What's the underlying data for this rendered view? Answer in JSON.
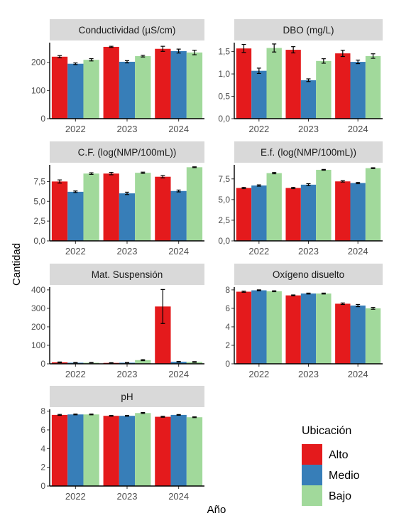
{
  "figure": {
    "ylabel": "Cantidad",
    "xlabel": "Año",
    "legend": {
      "title": "Ubicación",
      "position": "bottom-right",
      "entries": [
        {
          "label": "Alto",
          "color": "#e41a1c"
        },
        {
          "label": "Medio",
          "color": "#377eb8"
        },
        {
          "label": "Bajo",
          "color": "#a1d99b"
        }
      ]
    }
  },
  "chart_data": [
    {
      "type": "bar",
      "title": "Conductividad (µS/cm)",
      "categories": [
        "2022",
        "2023",
        "2024"
      ],
      "ylim": [
        0,
        270
      ],
      "yticks": [
        0,
        100,
        200
      ],
      "ytick_labels": [
        "0",
        "100",
        "200"
      ],
      "series": [
        {
          "name": "Alto",
          "values": [
            220,
            255,
            248
          ],
          "errors": [
            4,
            2,
            9
          ]
        },
        {
          "name": "Medio",
          "values": [
            195,
            202,
            240
          ],
          "errors": [
            3,
            4,
            7
          ]
        },
        {
          "name": "Bajo",
          "values": [
            209,
            222,
            235
          ],
          "errors": [
            4,
            3,
            8
          ]
        }
      ]
    },
    {
      "type": "bar",
      "title": "DBO (mg/L)",
      "categories": [
        "2022",
        "2023",
        "2024"
      ],
      "ylim": [
        0,
        1.7
      ],
      "yticks": [
        0,
        0.5,
        1.0,
        1.5
      ],
      "ytick_labels": [
        "0,0",
        "0,5",
        "1,0",
        "1,5"
      ],
      "series": [
        {
          "name": "Alto",
          "values": [
            1.57,
            1.54,
            1.46
          ],
          "errors": [
            0.09,
            0.07,
            0.07
          ]
        },
        {
          "name": "Medio",
          "values": [
            1.07,
            0.86,
            1.27
          ],
          "errors": [
            0.06,
            0.03,
            0.04
          ]
        },
        {
          "name": "Bajo",
          "values": [
            1.58,
            1.29,
            1.4
          ],
          "errors": [
            0.09,
            0.05,
            0.05
          ]
        }
      ]
    },
    {
      "type": "bar",
      "title": "C.F. (log(NMP/100mL))",
      "categories": [
        "2022",
        "2023",
        "2024"
      ],
      "ylim": [
        0,
        9.6
      ],
      "yticks": [
        0,
        2.5,
        5.0,
        7.5
      ],
      "ytick_labels": [
        "0,0",
        "2,5",
        "5,0",
        "7,5"
      ],
      "series": [
        {
          "name": "Alto",
          "values": [
            7.5,
            8.5,
            8.1
          ],
          "errors": [
            0.2,
            0.15,
            0.15
          ]
        },
        {
          "name": "Medio",
          "values": [
            6.2,
            6.0,
            6.3
          ],
          "errors": [
            0.1,
            0.15,
            0.12
          ]
        },
        {
          "name": "Bajo",
          "values": [
            8.5,
            8.6,
            9.3
          ],
          "errors": [
            0.1,
            0.08,
            0.05
          ]
        }
      ]
    },
    {
      "type": "bar",
      "title": "E.f. (log(NMP/100mL))",
      "categories": [
        "2022",
        "2023",
        "2024"
      ],
      "ylim": [
        0,
        9.2
      ],
      "yticks": [
        0,
        2.5,
        5.0,
        7.5
      ],
      "ytick_labels": [
        "0,0",
        "2,5",
        "5,0",
        "7,5"
      ],
      "series": [
        {
          "name": "Alto",
          "values": [
            6.4,
            6.4,
            7.2
          ],
          "errors": [
            0.08,
            0.08,
            0.08
          ]
        },
        {
          "name": "Medio",
          "values": [
            6.7,
            6.8,
            7.0
          ],
          "errors": [
            0.08,
            0.12,
            0.08
          ]
        },
        {
          "name": "Bajo",
          "values": [
            8.2,
            8.6,
            8.8
          ],
          "errors": [
            0.08,
            0.05,
            0.05
          ]
        }
      ]
    },
    {
      "type": "bar",
      "title": "Mat. Suspensión",
      "categories": [
        "2022",
        "2023",
        "2024"
      ],
      "ylim": [
        0,
        415
      ],
      "yticks": [
        0,
        100,
        200,
        300,
        400
      ],
      "ytick_labels": [
        "0",
        "100",
        "200",
        "300",
        "400"
      ],
      "series": [
        {
          "name": "Alto",
          "values": [
            8,
            5,
            310
          ],
          "errors": [
            2,
            1,
            92
          ]
        },
        {
          "name": "Medio",
          "values": [
            6,
            6,
            11
          ],
          "errors": [
            1,
            1,
            2
          ]
        },
        {
          "name": "Bajo",
          "values": [
            6,
            20,
            10
          ],
          "errors": [
            1,
            3,
            2
          ]
        }
      ]
    },
    {
      "type": "bar",
      "title": "Oxígeno disuelto",
      "categories": [
        "2022",
        "2023",
        "2024"
      ],
      "ylim": [
        0,
        8.3
      ],
      "yticks": [
        0,
        2,
        4,
        6,
        8
      ],
      "ytick_labels": [
        "0",
        "2",
        "4",
        "6",
        "8"
      ],
      "series": [
        {
          "name": "Alto",
          "values": [
            7.8,
            7.4,
            6.5
          ],
          "errors": [
            0.06,
            0.05,
            0.08
          ]
        },
        {
          "name": "Medio",
          "values": [
            7.95,
            7.6,
            6.3
          ],
          "errors": [
            0.05,
            0.05,
            0.12
          ]
        },
        {
          "name": "Bajo",
          "values": [
            7.85,
            7.6,
            6.0
          ],
          "errors": [
            0.05,
            0.05,
            0.1
          ]
        }
      ]
    },
    {
      "type": "bar",
      "title": "pH",
      "categories": [
        "2022",
        "2023",
        "2024"
      ],
      "ylim": [
        0,
        8.2
      ],
      "yticks": [
        0,
        2,
        4,
        6,
        8
      ],
      "ytick_labels": [
        "0",
        "2",
        "4",
        "6",
        "8"
      ],
      "series": [
        {
          "name": "Alto",
          "values": [
            7.6,
            7.5,
            7.4
          ],
          "errors": [
            0.05,
            0.04,
            0.05
          ]
        },
        {
          "name": "Medio",
          "values": [
            7.65,
            7.5,
            7.6
          ],
          "errors": [
            0.04,
            0.04,
            0.04
          ]
        },
        {
          "name": "Bajo",
          "values": [
            7.65,
            7.8,
            7.35
          ],
          "errors": [
            0.04,
            0.05,
            0.04
          ]
        }
      ]
    }
  ]
}
